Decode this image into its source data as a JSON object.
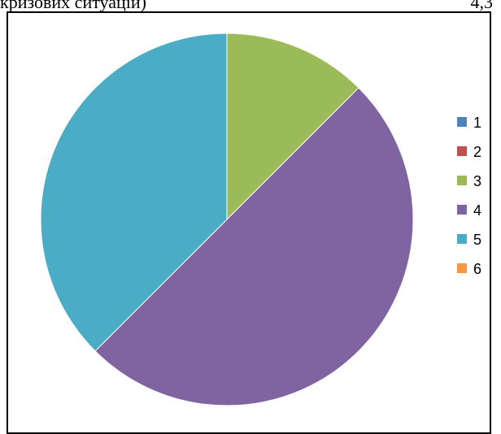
{
  "header_fragment": {
    "left": "кризових ситуацій)",
    "right": "4,3"
  },
  "chart_data": {
    "type": "pie",
    "categories": [
      "1",
      "2",
      "3",
      "4",
      "5",
      "6"
    ],
    "values": [
      0,
      0,
      12.5,
      50,
      37.5,
      0
    ],
    "colors": [
      "#4F81BD",
      "#C0504D",
      "#9BBB59",
      "#8064A2",
      "#4BACC6",
      "#F79646"
    ],
    "start_angle_deg": 0,
    "direction": "clockwise",
    "legend_position": "right",
    "title": "",
    "grid": false
  }
}
